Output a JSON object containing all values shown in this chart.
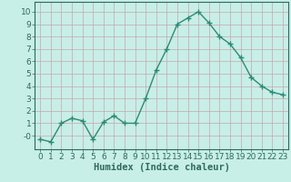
{
  "x": [
    0,
    1,
    2,
    3,
    4,
    5,
    6,
    7,
    8,
    9,
    10,
    11,
    12,
    13,
    14,
    15,
    16,
    17,
    18,
    19,
    20,
    21,
    22,
    23
  ],
  "y": [
    -0.3,
    -0.5,
    1.0,
    1.4,
    1.2,
    -0.3,
    1.1,
    1.6,
    1.0,
    1.0,
    3.0,
    5.3,
    7.0,
    9.0,
    9.5,
    10.0,
    9.1,
    8.0,
    7.4,
    6.3,
    4.7,
    4.0,
    3.5,
    3.3
  ],
  "line_color": "#2d8b74",
  "marker": "+",
  "marker_size": 4,
  "bg_color": "#c8eee8",
  "grid_color": "#c4a8a8",
  "xlabel": "Humidex (Indice chaleur)",
  "xlabel_fontsize": 7.5,
  "xlim": [
    -0.5,
    23.5
  ],
  "ylim": [
    -1.1,
    10.8
  ],
  "yticks": [
    0,
    1,
    2,
    3,
    4,
    5,
    6,
    7,
    8,
    9,
    10
  ],
  "ytick_labels": [
    "-0",
    "1",
    "2",
    "3",
    "4",
    "5",
    "6",
    "7",
    "8",
    "9",
    "10"
  ],
  "xticks": [
    0,
    1,
    2,
    3,
    4,
    5,
    6,
    7,
    8,
    9,
    10,
    11,
    12,
    13,
    14,
    15,
    16,
    17,
    18,
    19,
    20,
    21,
    22,
    23
  ],
  "tick_label_fontsize": 6.5,
  "axis_color": "#2d6b5a",
  "spine_color": "#2d6b5a",
  "linewidth": 1.0,
  "marker_linewidth": 1.0
}
